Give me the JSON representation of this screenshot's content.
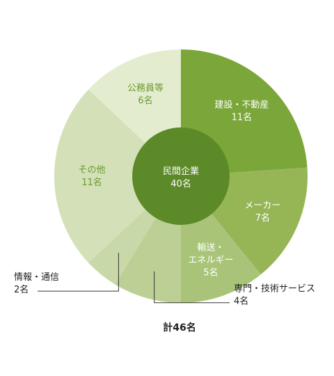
{
  "chart_data": {
    "type": "pie",
    "total_label": "計46名",
    "slices": [
      {
        "name": "建設・不動産",
        "count_label": "11名",
        "value": 11,
        "color": "#7ba63a",
        "label_color": "#ffffff",
        "label_pos": "inside"
      },
      {
        "name": "メーカー",
        "count_label": "7名",
        "value": 7,
        "color": "#96b656",
        "label_color": "#ffffff",
        "label_pos": "inside"
      },
      {
        "name": "輸送・エネルギー",
        "count_label": "5名",
        "value": 5,
        "color": "#a9c479",
        "label_color": "#ffffff",
        "label_pos": "inside"
      },
      {
        "name": "専門・技術サービス",
        "count_label": "4名",
        "value": 4,
        "color": "#bcd095",
        "label_color": "#222222",
        "label_pos": "outside-right"
      },
      {
        "name": "情報・通信",
        "count_label": "2名",
        "value": 2,
        "color": "#c8d8a9",
        "label_color": "#222222",
        "label_pos": "outside-left"
      },
      {
        "name": "その他",
        "count_label": "11名",
        "value": 11,
        "color": "#d3e0b8",
        "label_color": "#6a9a2f",
        "label_pos": "inside"
      },
      {
        "name": "公務員等",
        "count_label": "6名",
        "value": 6,
        "color": "#e4eccf",
        "label_color": "#6a9a2f",
        "label_pos": "inside"
      }
    ],
    "center": {
      "name": "民間企業",
      "count_label": "40名",
      "value": 40,
      "color": "#5d8a28",
      "label_color": "#ffffff"
    }
  }
}
